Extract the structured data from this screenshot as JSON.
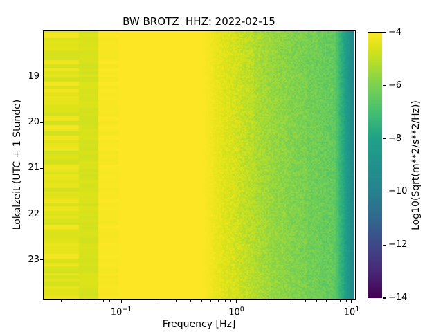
{
  "chart_data": {
    "type": "heatmap",
    "title": "BW BROTZ  HHZ: 2022-02-15",
    "xlabel": "Frequency [Hz]",
    "ylabel": "Lokalzeit (UTC + 1 Stunde)",
    "x_scale": "log",
    "x_range_hz": [
      0.0212,
      10.57
    ],
    "y_range_hours_local": [
      18.0,
      23.85
    ],
    "grid": false,
    "x_major_ticks": [
      {
        "value": 0.1,
        "base": "10",
        "exp": "−1"
      },
      {
        "value": 1.0,
        "base": "10",
        "exp": "0"
      },
      {
        "value": 10.0,
        "base": "10",
        "exp": "1"
      }
    ],
    "y_ticks": [
      {
        "value": 19,
        "label": "19"
      },
      {
        "value": 20,
        "label": "20"
      },
      {
        "value": 21,
        "label": "21"
      },
      {
        "value": 22,
        "label": "22"
      },
      {
        "value": 23,
        "label": "23"
      }
    ],
    "colorbar": {
      "label": "Log10(Sqrt(m**2/s**2/Hz))",
      "vmin": -14,
      "vmax": -4,
      "ticks": [
        {
          "value": -4,
          "label": "−4"
        },
        {
          "value": -6,
          "label": "−6"
        },
        {
          "value": -8,
          "label": "−8"
        },
        {
          "value": -10,
          "label": "−10"
        },
        {
          "value": -12,
          "label": "−12"
        },
        {
          "value": -14,
          "label": "−14"
        }
      ],
      "colormap": "viridis"
    },
    "viridis_stops": [
      [
        0.0,
        "#440154"
      ],
      [
        0.1,
        "#482878"
      ],
      [
        0.2,
        "#3e4989"
      ],
      [
        0.3,
        "#31688e"
      ],
      [
        0.4,
        "#26828e"
      ],
      [
        0.5,
        "#21918c"
      ],
      [
        0.6,
        "#1fa187"
      ],
      [
        0.7,
        "#44bf70"
      ],
      [
        0.8,
        "#7ad151"
      ],
      [
        0.9,
        "#bddf26"
      ],
      [
        0.95,
        "#dfe318"
      ],
      [
        1.0,
        "#fde725"
      ]
    ],
    "spectrum_zones": [
      {
        "name": "striped-low-freq",
        "log_f": [
          -1.68,
          -1.372
        ],
        "texture": "stripes",
        "base_level": -4.12,
        "stripe_depth": 0.6
      },
      {
        "name": "olive-band",
        "log_f": [
          -1.372,
          -1.204
        ],
        "texture": "stripes2",
        "base_level": -4.38,
        "stripe_depth": 0.42
      },
      {
        "name": "faint-stripe-fade",
        "log_f": [
          -1.204,
          -1.03
        ],
        "texture": "stripes",
        "base_level": -4.0,
        "stripe_depth": 0.14
      },
      {
        "name": "bright-plateau",
        "log_f": [
          -1.03,
          -0.28
        ],
        "texture": "flat",
        "base_level": -4.0
      },
      {
        "name": "speckled-rolloff",
        "log_f": [
          -0.28,
          0.85
        ],
        "texture": "speckle",
        "noise": 0.38,
        "level_curve": [
          [
            -0.28,
            -4.03
          ],
          [
            0.0,
            -4.75
          ],
          [
            0.3,
            -5.55
          ],
          [
            0.6,
            -6.05
          ],
          [
            0.85,
            -6.45
          ]
        ]
      },
      {
        "name": "teal-high-freq-edge",
        "log_f": [
          0.85,
          1.03
        ],
        "texture": "speckle",
        "noise": 0.2,
        "level_curve": [
          [
            0.85,
            -6.45
          ],
          [
            0.95,
            -8.2
          ],
          [
            1.03,
            -10.3
          ]
        ]
      }
    ],
    "axis_color": "#000000",
    "background_color": "#ffffff"
  }
}
